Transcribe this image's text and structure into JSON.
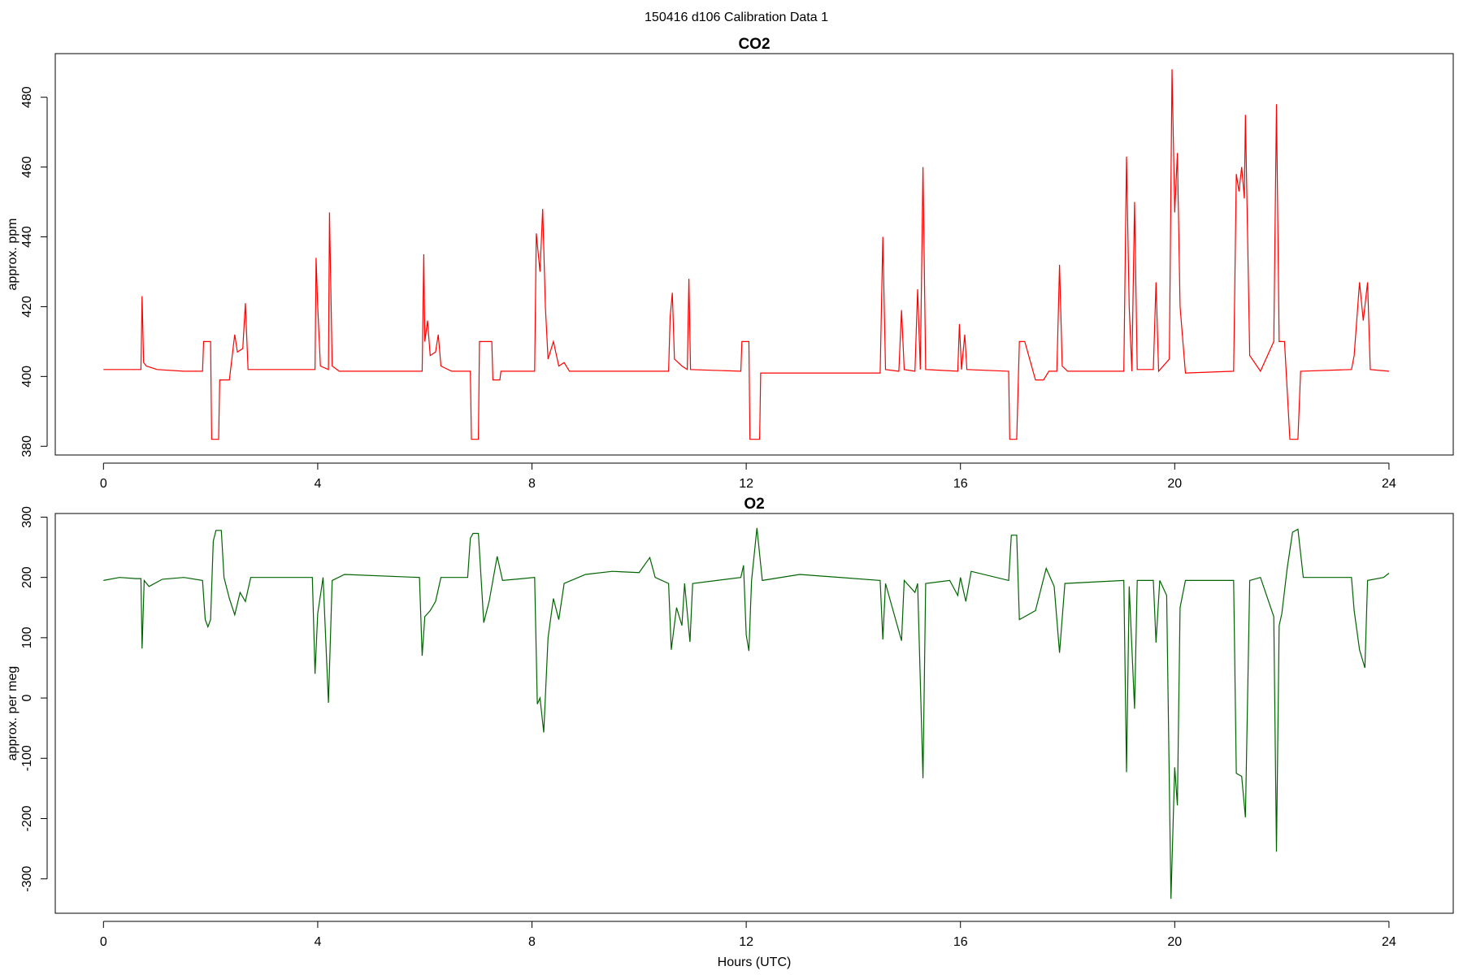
{
  "title": "150416   d106   Calibration Data 1",
  "chart_data": [
    {
      "type": "line",
      "title": "CO2",
      "ylabel": "approx. ppm",
      "color": "#ff0000",
      "xlim": [
        -0.9,
        25.2
      ],
      "xticks": [
        0,
        4,
        8,
        12,
        16,
        20,
        24
      ],
      "ylim": [
        377.5,
        492.5
      ],
      "yticks": [
        380,
        400,
        420,
        440,
        460,
        480
      ],
      "x": [
        0,
        0.7,
        0.72,
        0.75,
        0.8,
        1.0,
        1.5,
        1.85,
        1.87,
        2.0,
        2.02,
        2.15,
        2.17,
        2.35,
        2.45,
        2.5,
        2.6,
        2.65,
        2.7,
        3.95,
        3.97,
        4.0,
        4.05,
        4.2,
        4.22,
        4.27,
        4.4,
        5.95,
        5.98,
        6.0,
        6.05,
        6.1,
        6.2,
        6.25,
        6.3,
        6.5,
        6.85,
        6.87,
        7.0,
        7.02,
        7.25,
        7.27,
        7.4,
        7.42,
        8.05,
        8.08,
        8.15,
        8.2,
        8.25,
        8.3,
        8.4,
        8.5,
        8.6,
        8.7,
        10.55,
        10.58,
        10.62,
        10.66,
        10.8,
        10.9,
        10.93,
        10.96,
        11.9,
        11.92,
        12.05,
        12.07,
        12.25,
        12.27,
        14.5,
        14.55,
        14.6,
        14.85,
        14.9,
        14.95,
        15.15,
        15.2,
        15.25,
        15.3,
        15.35,
        15.95,
        15.98,
        16.02,
        16.08,
        16.12,
        16.9,
        16.92,
        17.05,
        17.1,
        17.2,
        17.4,
        17.55,
        17.65,
        17.8,
        17.85,
        17.9,
        18.0,
        19.05,
        19.1,
        19.15,
        19.2,
        19.25,
        19.3,
        19.6,
        19.65,
        19.7,
        19.9,
        19.95,
        20.0,
        20.05,
        20.1,
        20.2,
        21.1,
        21.15,
        21.2,
        21.25,
        21.3,
        21.32,
        21.4,
        21.6,
        21.85,
        21.9,
        21.95,
        22.05,
        22.15,
        22.3,
        22.35,
        23.3,
        23.35,
        23.45,
        23.52,
        23.6,
        23.65,
        24
      ],
      "values": [
        402,
        402,
        423,
        404,
        403,
        402,
        401.5,
        401.5,
        410,
        410,
        382,
        382,
        399,
        399,
        412,
        407,
        408,
        421,
        402,
        402,
        434,
        420,
        403,
        402,
        447,
        403,
        401.5,
        401.5,
        435,
        410,
        416,
        406,
        407,
        412,
        403,
        401.5,
        401.5,
        382,
        382,
        410,
        410,
        399,
        399,
        401.5,
        401.5,
        441,
        430,
        448,
        420,
        405,
        410,
        403,
        404,
        401.5,
        401.5,
        417,
        424,
        405,
        403,
        402,
        428,
        402,
        401.5,
        410,
        410,
        382,
        382,
        401,
        401,
        440,
        402,
        401.5,
        419,
        402,
        401.5,
        425,
        402,
        460,
        402,
        401.5,
        415,
        402,
        412,
        402,
        401.5,
        382,
        382,
        410,
        410,
        399,
        399,
        401.5,
        401.5,
        432,
        403,
        401.5,
        401.5,
        463,
        420,
        401.5,
        450,
        402,
        402,
        427,
        401.5,
        405,
        488,
        447,
        464,
        420,
        401,
        401.5,
        458,
        453,
        460,
        451,
        475,
        406,
        401.5,
        410,
        478,
        410,
        410,
        382,
        382,
        401.5,
        402,
        406,
        427,
        416,
        427,
        402,
        401.5
      ]
    },
    {
      "type": "line",
      "title": "O2",
      "ylabel": "approx. per meg",
      "xlabel": "Hours (UTC)",
      "color": "#006400",
      "xlim": [
        -0.9,
        25.2
      ],
      "xticks": [
        0,
        4,
        8,
        12,
        16,
        20,
        24
      ],
      "ylim": [
        -357,
        306
      ],
      "yticks": [
        -300,
        -200,
        -100,
        0,
        100,
        200,
        300
      ],
      "x": [
        0,
        0.3,
        0.6,
        0.7,
        0.72,
        0.76,
        0.85,
        1.1,
        1.5,
        1.85,
        1.9,
        1.95,
        2.0,
        2.05,
        2.1,
        2.2,
        2.25,
        2.35,
        2.45,
        2.55,
        2.65,
        2.75,
        3.9,
        3.95,
        4.0,
        4.1,
        4.2,
        4.27,
        4.5,
        5.9,
        5.95,
        6.0,
        6.1,
        6.2,
        6.3,
        6.8,
        6.85,
        6.9,
        7.0,
        7.1,
        7.2,
        7.35,
        7.45,
        8.05,
        8.1,
        8.15,
        8.22,
        8.3,
        8.4,
        8.5,
        8.6,
        9.0,
        9.5,
        10.0,
        10.2,
        10.3,
        10.55,
        10.6,
        10.7,
        10.8,
        10.85,
        10.95,
        11.0,
        11.9,
        11.95,
        12.0,
        12.05,
        12.1,
        12.2,
        12.3,
        13.0,
        14.5,
        14.55,
        14.6,
        14.9,
        14.95,
        15.15,
        15.2,
        15.3,
        15.35,
        15.8,
        15.95,
        16.0,
        16.1,
        16.2,
        16.9,
        16.95,
        17.05,
        17.1,
        17.4,
        17.6,
        17.75,
        17.85,
        17.95,
        19.05,
        19.1,
        19.15,
        19.25,
        19.3,
        19.6,
        19.65,
        19.72,
        19.85,
        19.93,
        20.0,
        20.05,
        20.1,
        20.2,
        21.1,
        21.15,
        21.25,
        21.32,
        21.4,
        21.6,
        21.85,
        21.9,
        21.95,
        22.0,
        22.1,
        22.2,
        22.3,
        22.4,
        23.3,
        23.35,
        23.45,
        23.55,
        23.6,
        23.9,
        24
      ],
      "values": [
        195,
        200,
        198,
        198,
        82,
        195,
        185,
        197,
        200,
        195,
        130,
        118,
        130,
        260,
        278,
        278,
        200,
        165,
        138,
        175,
        160,
        200,
        200,
        40,
        140,
        200,
        -8,
        195,
        205,
        200,
        70,
        135,
        145,
        160,
        200,
        200,
        265,
        273,
        273,
        125,
        160,
        235,
        195,
        200,
        -10,
        0,
        -57,
        100,
        165,
        130,
        190,
        205,
        210,
        208,
        233,
        200,
        190,
        80,
        150,
        120,
        190,
        93,
        190,
        200,
        220,
        105,
        78,
        195,
        282,
        195,
        205,
        195,
        97,
        190,
        95,
        195,
        175,
        190,
        -133,
        190,
        195,
        170,
        200,
        160,
        210,
        195,
        270,
        270,
        130,
        145,
        215,
        185,
        75,
        190,
        195,
        -123,
        185,
        -18,
        195,
        195,
        92,
        195,
        170,
        -333,
        -115,
        -178,
        150,
        195,
        195,
        -125,
        -130,
        -198,
        195,
        200,
        135,
        -255,
        120,
        140,
        215,
        275,
        280,
        200,
        200,
        145,
        80,
        50,
        195,
        200,
        207
      ]
    }
  ]
}
